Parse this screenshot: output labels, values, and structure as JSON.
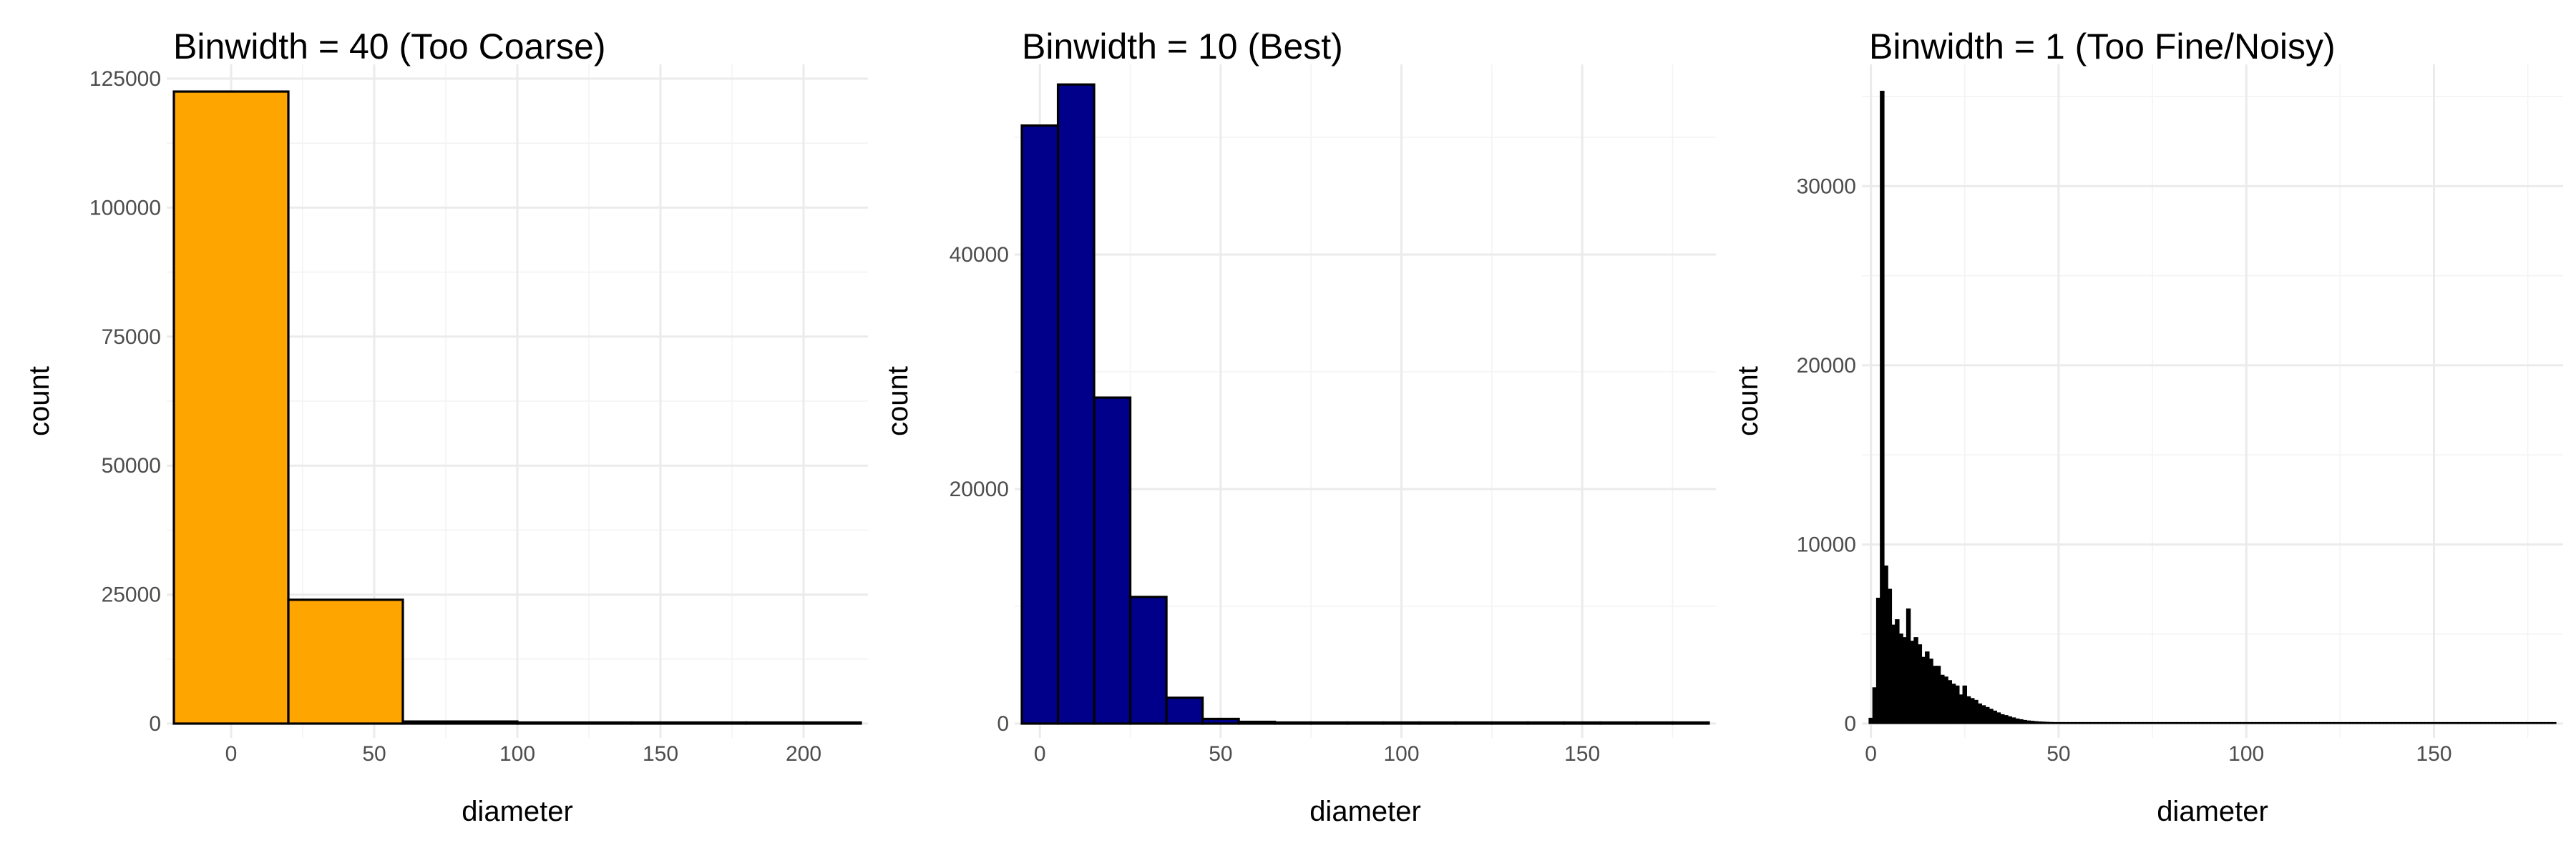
{
  "colors": {
    "panel_1": "#FFA500",
    "panel_2": "#00008B",
    "panel_3": "#000000",
    "outline": "#000000"
  },
  "chart_data": [
    {
      "type": "bar",
      "title": "Binwidth = 40 (Too Coarse)",
      "xlabel": "diameter",
      "ylabel": "count",
      "binwidth": 40,
      "xlim": [
        -20,
        220
      ],
      "ylim": [
        0,
        125000
      ],
      "x_ticks": [
        0,
        50,
        100,
        150,
        200
      ],
      "y_ticks": [
        0,
        25000,
        50000,
        75000,
        100000,
        125000
      ],
      "bins": [
        {
          "x0": -20,
          "x1": 20,
          "count": 122500
        },
        {
          "x0": 20,
          "x1": 60,
          "count": 24000
        },
        {
          "x0": 60,
          "x1": 100,
          "count": 400
        },
        {
          "x0": 100,
          "x1": 140,
          "count": 120
        },
        {
          "x0": 140,
          "x1": 180,
          "count": 50
        },
        {
          "x0": 180,
          "x1": 220,
          "count": 20
        }
      ]
    },
    {
      "type": "bar",
      "title": "Binwidth = 10 (Best)",
      "xlabel": "diameter",
      "ylabel": "count",
      "binwidth": 10,
      "xlim": [
        -5,
        185
      ],
      "ylim": [
        0,
        55000
      ],
      "x_ticks": [
        0,
        50,
        100,
        150
      ],
      "y_ticks": [
        0,
        20000,
        40000
      ],
      "bins": [
        {
          "x0": -5,
          "x1": 5,
          "count": 51000
        },
        {
          "x0": 5,
          "x1": 15,
          "count": 54500
        },
        {
          "x0": 15,
          "x1": 25,
          "count": 27800
        },
        {
          "x0": 25,
          "x1": 35,
          "count": 10800
        },
        {
          "x0": 35,
          "x1": 45,
          "count": 2200
        },
        {
          "x0": 45,
          "x1": 55,
          "count": 400
        },
        {
          "x0": 55,
          "x1": 65,
          "count": 150
        },
        {
          "x0": 65,
          "x1": 75,
          "count": 90
        },
        {
          "x0": 75,
          "x1": 85,
          "count": 60
        },
        {
          "x0": 85,
          "x1": 95,
          "count": 40
        },
        {
          "x0": 95,
          "x1": 105,
          "count": 60
        },
        {
          "x0": 105,
          "x1": 115,
          "count": 30
        },
        {
          "x0": 115,
          "x1": 125,
          "count": 25
        },
        {
          "x0": 125,
          "x1": 135,
          "count": 20
        },
        {
          "x0": 135,
          "x1": 145,
          "count": 15
        },
        {
          "x0": 145,
          "x1": 155,
          "count": 15
        },
        {
          "x0": 155,
          "x1": 165,
          "count": 10
        },
        {
          "x0": 165,
          "x1": 175,
          "count": 8
        },
        {
          "x0": 175,
          "x1": 185,
          "count": 5
        }
      ]
    },
    {
      "type": "bar",
      "title": "Binwidth = 1 (Too Fine/Noisy)",
      "xlabel": "diameter",
      "ylabel": "count",
      "binwidth": 1,
      "xlim": [
        -0.5,
        182.5
      ],
      "ylim": [
        0,
        36000
      ],
      "x_ticks": [
        0,
        50,
        100,
        150
      ],
      "y_ticks": [
        0,
        10000,
        20000,
        30000
      ],
      "bin_start": -0.5,
      "counts": [
        300,
        2000,
        7000,
        35300,
        8800,
        7500,
        5500,
        5800,
        5000,
        4800,
        6400,
        4600,
        4800,
        4400,
        3700,
        4000,
        3600,
        3200,
        3200,
        2700,
        2600,
        2400,
        2200,
        2100,
        1600,
        2100,
        1500,
        1400,
        1300,
        1100,
        1000,
        900,
        800,
        700,
        600,
        500,
        450,
        380,
        320,
        260,
        220,
        180,
        150,
        130,
        110,
        95,
        85,
        75,
        65,
        60,
        55,
        50,
        45,
        42,
        40,
        38,
        35,
        33,
        30,
        30,
        28,
        26,
        25,
        25,
        24,
        22,
        21,
        20,
        20,
        19,
        18,
        17,
        16,
        15,
        15,
        14,
        14,
        13,
        13,
        12,
        12,
        11,
        11,
        10,
        10,
        10,
        9,
        9,
        9,
        8,
        8,
        8,
        8,
        7,
        7,
        7,
        7,
        6,
        6,
        6,
        6,
        6,
        5,
        5,
        5,
        5,
        5,
        5,
        4,
        4,
        4,
        4,
        4,
        4,
        4,
        3,
        3,
        3,
        3,
        3,
        3,
        3,
        3,
        3,
        2,
        2,
        2,
        2,
        2,
        2,
        2,
        2,
        2,
        2,
        2,
        2,
        2,
        2,
        2,
        2,
        1,
        1,
        1,
        1,
        1,
        1,
        1,
        1,
        1,
        1,
        1,
        1,
        1,
        1,
        1,
        1,
        1,
        1,
        1,
        1,
        1,
        1,
        1,
        1,
        1,
        1,
        1,
        1,
        1,
        1,
        1,
        1,
        1,
        1,
        1,
        1,
        1,
        1,
        1,
        1,
        1,
        1,
        1
      ]
    }
  ]
}
